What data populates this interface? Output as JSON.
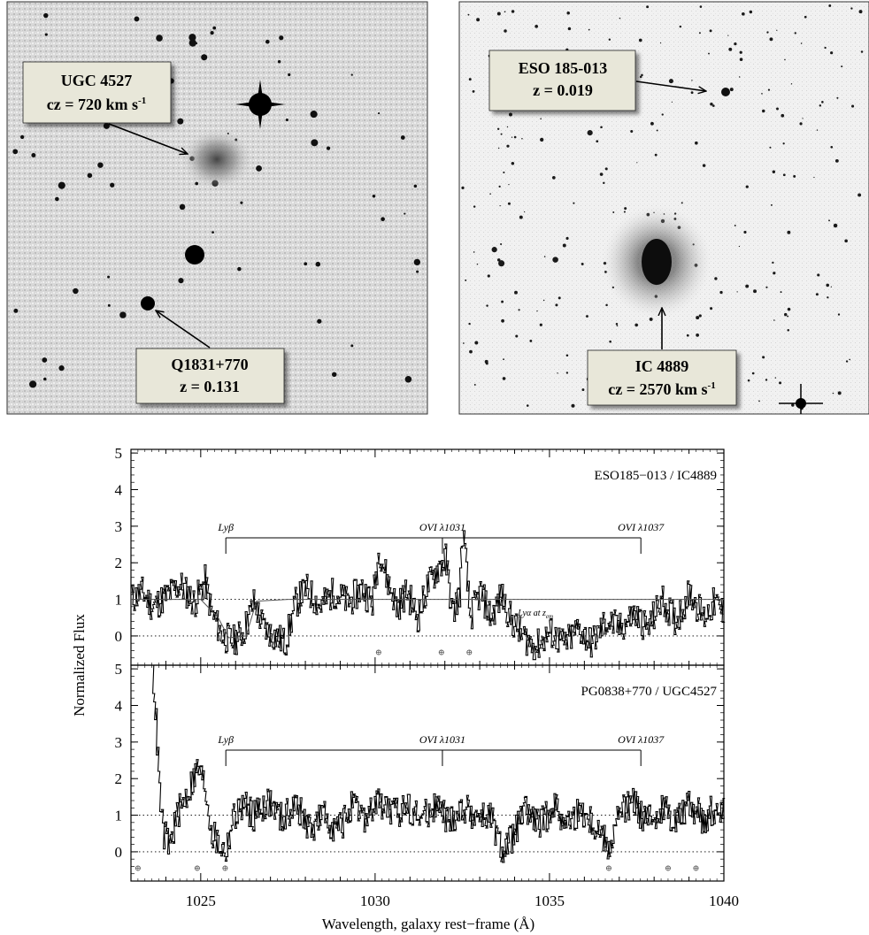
{
  "images": [
    {
      "labels": [
        {
          "line1": "UGC 4527",
          "line2_prefix": "cz = ",
          "line2_value": "720 km s",
          "line2_sup": "-1"
        },
        {
          "line1": "Q1831+770",
          "line2_prefix": "z = ",
          "line2_value": "0.131",
          "line2_sup": ""
        }
      ]
    },
    {
      "labels": [
        {
          "line1": "ESO 185-013",
          "line2_prefix": "z = ",
          "line2_value": "0.019",
          "line2_sup": ""
        },
        {
          "line1": "IC 4889",
          "line2_prefix": "cz = ",
          "line2_value": "2570 km s",
          "line2_sup": "-1"
        }
      ]
    }
  ],
  "chart_data": {
    "type": "line",
    "x_label": "Wavelength, galaxy rest−frame (Å)",
    "y_label": "Normalized Flux",
    "x_range": [
      1023,
      1040
    ],
    "x_ticks": [
      "1025",
      "1030",
      "1035",
      "1040"
    ],
    "y_range": [
      -0.8,
      5.1
    ],
    "y_ticks": [
      "0",
      "1",
      "2",
      "3",
      "4",
      "5"
    ],
    "panels": [
      {
        "title": "ESO185−013 / IC4889",
        "lines": [
          {
            "name": "Lyβ",
            "wavelength": 1025.72
          },
          {
            "name": "OVI λ1031",
            "wavelength": 1031.93
          },
          {
            "name": "OVI λ1037",
            "wavelength": 1037.62
          }
        ],
        "extra_label": "Lyα at z",
        "extra_label_sub": "em",
        "extra_label_wavelength": 1034.6,
        "earth_symbols": [
          1030.1,
          1031.9,
          1032.7
        ],
        "spectrum": [
          [
            1023.0,
            1.0
          ],
          [
            1023.3,
            1.2
          ],
          [
            1023.6,
            0.8
          ],
          [
            1024.0,
            1.1
          ],
          [
            1024.4,
            1.4
          ],
          [
            1024.8,
            0.9
          ],
          [
            1025.1,
            1.5
          ],
          [
            1025.3,
            0.6
          ],
          [
            1025.6,
            0.0
          ],
          [
            1025.9,
            -0.15
          ],
          [
            1026.2,
            0.1
          ],
          [
            1026.5,
            0.9
          ],
          [
            1026.8,
            0.2
          ],
          [
            1027.1,
            0.0
          ],
          [
            1027.4,
            -0.2
          ],
          [
            1027.7,
            0.9
          ],
          [
            1028.0,
            1.3
          ],
          [
            1028.4,
            0.8
          ],
          [
            1028.8,
            1.2
          ],
          [
            1029.2,
            0.9
          ],
          [
            1029.6,
            1.3
          ],
          [
            1029.9,
            0.9
          ],
          [
            1030.1,
            2.4
          ],
          [
            1030.3,
            1.6
          ],
          [
            1030.6,
            0.8
          ],
          [
            1030.9,
            1.2
          ],
          [
            1031.2,
            0.5
          ],
          [
            1031.5,
            1.4
          ],
          [
            1031.8,
            1.9
          ],
          [
            1032.0,
            2.1
          ],
          [
            1032.2,
            0.6
          ],
          [
            1032.4,
            1.2
          ],
          [
            1032.5,
            2.9
          ],
          [
            1032.7,
            0.5
          ],
          [
            1033.0,
            1.2
          ],
          [
            1033.3,
            0.5
          ],
          [
            1033.6,
            1.1
          ],
          [
            1033.9,
            0.4
          ],
          [
            1034.2,
            0.0
          ],
          [
            1034.6,
            -0.3
          ],
          [
            1035.0,
            0.1
          ],
          [
            1035.4,
            -0.25
          ],
          [
            1035.8,
            0.2
          ],
          [
            1036.2,
            -0.2
          ],
          [
            1036.6,
            0.4
          ],
          [
            1037.0,
            0.2
          ],
          [
            1037.4,
            0.6
          ],
          [
            1037.8,
            0.2
          ],
          [
            1038.2,
            1.0
          ],
          [
            1038.6,
            0.4
          ],
          [
            1039.0,
            1.2
          ],
          [
            1039.4,
            0.5
          ],
          [
            1039.7,
            0.9
          ],
          [
            1040.0,
            0.6
          ]
        ],
        "model": [
          [
            1023.0,
            1.0
          ],
          [
            1025.0,
            1.0
          ],
          [
            1025.5,
            0.5
          ],
          [
            1025.8,
            -0.05
          ],
          [
            1026.3,
            0.0
          ],
          [
            1026.6,
            0.95
          ],
          [
            1027.5,
            1.0
          ],
          [
            1040.0,
            1.0
          ]
        ]
      },
      {
        "title": "PG0838+770 / UGC4527",
        "lines": [
          {
            "name": "Lyβ",
            "wavelength": 1025.72
          },
          {
            "name": "OVI λ1031",
            "wavelength": 1031.93
          },
          {
            "name": "OVI λ1037",
            "wavelength": 1037.62
          }
        ],
        "earth_symbols": [
          1023.2,
          1024.9,
          1025.7,
          1036.7,
          1038.4,
          1039.2
        ],
        "spectrum": [
          [
            1023.6,
            5.1
          ],
          [
            1023.7,
            3.5
          ],
          [
            1023.8,
            1.6
          ],
          [
            1023.9,
            0.5
          ],
          [
            1024.1,
            0.2
          ],
          [
            1024.3,
            1.0
          ],
          [
            1024.6,
            1.6
          ],
          [
            1024.9,
            2.3
          ],
          [
            1025.1,
            1.8
          ],
          [
            1025.3,
            0.5
          ],
          [
            1025.5,
            0.2
          ],
          [
            1025.7,
            0.0
          ],
          [
            1025.9,
            0.9
          ],
          [
            1026.2,
            1.3
          ],
          [
            1026.5,
            1.0
          ],
          [
            1026.9,
            1.4
          ],
          [
            1027.3,
            0.9
          ],
          [
            1027.7,
            1.3
          ],
          [
            1028.1,
            0.6
          ],
          [
            1028.5,
            1.0
          ],
          [
            1028.9,
            0.6
          ],
          [
            1029.3,
            1.2
          ],
          [
            1029.7,
            0.9
          ],
          [
            1030.1,
            1.4
          ],
          [
            1030.5,
            1.0
          ],
          [
            1030.9,
            1.3
          ],
          [
            1031.3,
            0.9
          ],
          [
            1031.7,
            1.3
          ],
          [
            1032.1,
            0.8
          ],
          [
            1032.5,
            1.2
          ],
          [
            1032.9,
            1.0
          ],
          [
            1033.3,
            0.9
          ],
          [
            1033.6,
            0.0
          ],
          [
            1033.9,
            0.4
          ],
          [
            1034.3,
            1.1
          ],
          [
            1034.7,
            0.7
          ],
          [
            1035.1,
            1.3
          ],
          [
            1035.5,
            0.8
          ],
          [
            1035.9,
            1.1
          ],
          [
            1036.3,
            0.7
          ],
          [
            1036.7,
            0.1
          ],
          [
            1037.0,
            1.1
          ],
          [
            1037.4,
            1.3
          ],
          [
            1037.8,
            0.8
          ],
          [
            1038.2,
            1.2
          ],
          [
            1038.6,
            0.9
          ],
          [
            1039.0,
            1.3
          ],
          [
            1039.4,
            0.9
          ],
          [
            1039.7,
            1.2
          ],
          [
            1040.0,
            1.0
          ]
        ]
      }
    ]
  }
}
